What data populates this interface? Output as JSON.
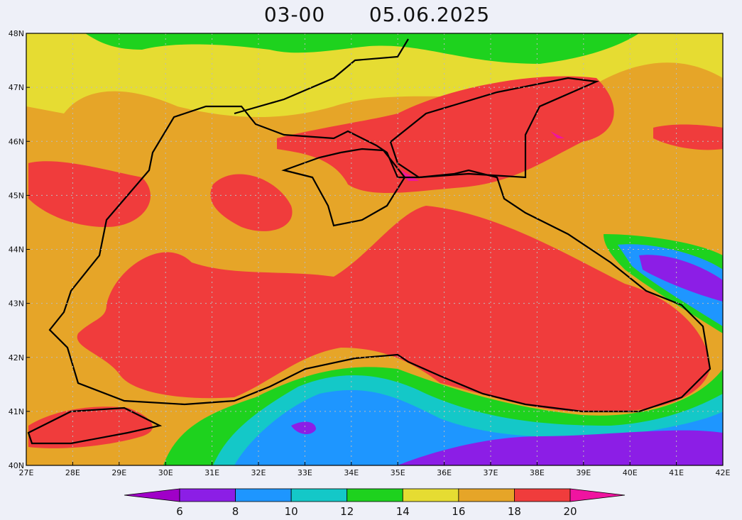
{
  "map": {
    "title_time": "03-00",
    "title_date": "05.06.2025",
    "lat_labels": [
      "48N",
      "47N",
      "46N",
      "45N",
      "44N",
      "43N",
      "42N",
      "41N",
      "40N"
    ],
    "lon_labels": [
      "27E",
      "28E",
      "29E",
      "30E",
      "31E",
      "32E",
      "33E",
      "34E",
      "35E",
      "36E",
      "37E",
      "38E",
      "39E",
      "40E",
      "41E",
      "42E"
    ],
    "colorbar": {
      "labels": [
        6,
        8,
        10,
        12,
        14,
        16,
        18,
        20
      ],
      "colors": [
        "#a000c8",
        "#8c1ee6",
        "#1e96ff",
        "#14c8c8",
        "#1ed21e",
        "#e6dc32",
        "#e6a528",
        "#f03c3c",
        "#f014a0"
      ]
    }
  }
}
